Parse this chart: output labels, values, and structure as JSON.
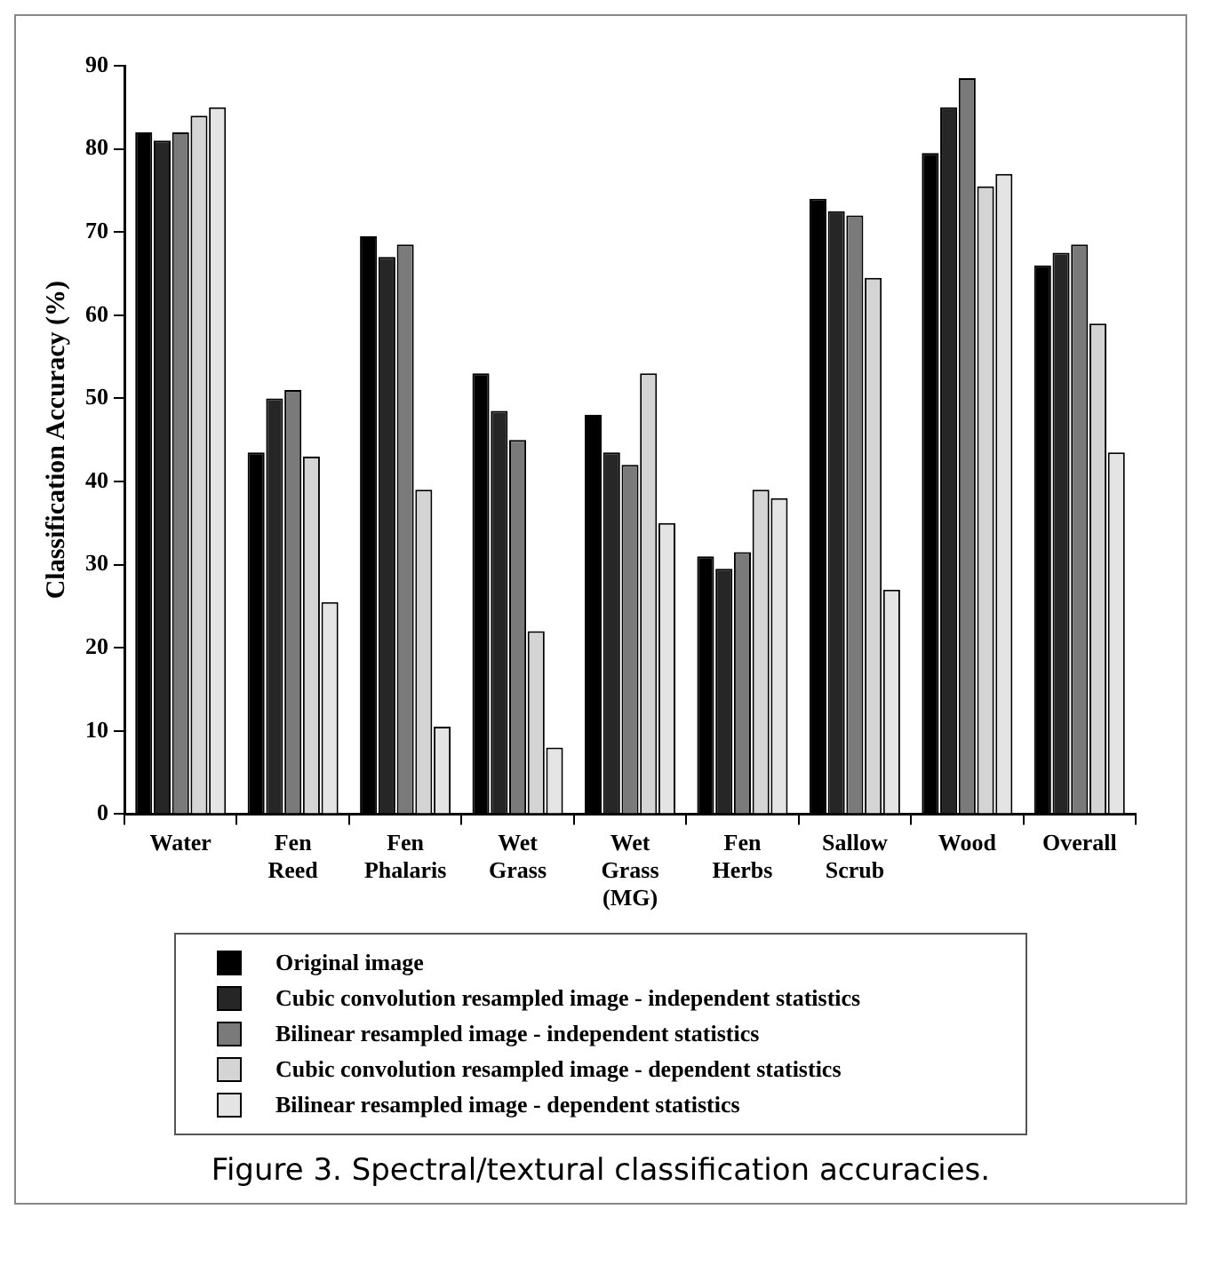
{
  "chart_data": {
    "type": "bar",
    "ylabel": "Classification Accuracy (%)",
    "categories": [
      "Water",
      "Fen Reed",
      "Fen Phalaris",
      "Wet Grass",
      "Wet Grass (MG)",
      "Fen Herbs",
      "Sallow Scrub",
      "Wood",
      "Overall"
    ],
    "series": [
      {
        "name": "Original image",
        "color": "#000000",
        "values": [
          82,
          43.5,
          69.5,
          53,
          48,
          31,
          74,
          79.5,
          66
        ]
      },
      {
        "name": "Cubic convolution resampled image - independent statistics",
        "color": "#262626",
        "values": [
          81,
          50,
          67,
          48.5,
          43.5,
          29.5,
          72.5,
          85,
          67.5
        ]
      },
      {
        "name": "Bilinear resampled image - independent statistics",
        "color": "#7a7a7a",
        "values": [
          82,
          51,
          68.5,
          45,
          42,
          31.5,
          72,
          88.5,
          68.5
        ]
      },
      {
        "name": "Cubic convolution resampled image - dependent statistics",
        "color": "#d4d4d4",
        "values": [
          84,
          43,
          39,
          22,
          53,
          39,
          64.5,
          75.5,
          59
        ]
      },
      {
        "name": "Bilinear resampled image - dependent statistics",
        "color": "#e4e4e4",
        "values": [
          85,
          25.5,
          10.5,
          8,
          35,
          38,
          27,
          77,
          43.5
        ]
      }
    ],
    "ylim": [
      0,
      90
    ],
    "yticks": [
      0,
      10,
      20,
      30,
      40,
      50,
      60,
      70,
      80,
      90
    ],
    "grid": false,
    "legend": "bottom",
    "annotations": [
      "Figure 3. Spectral/textural classification accuracies."
    ]
  }
}
